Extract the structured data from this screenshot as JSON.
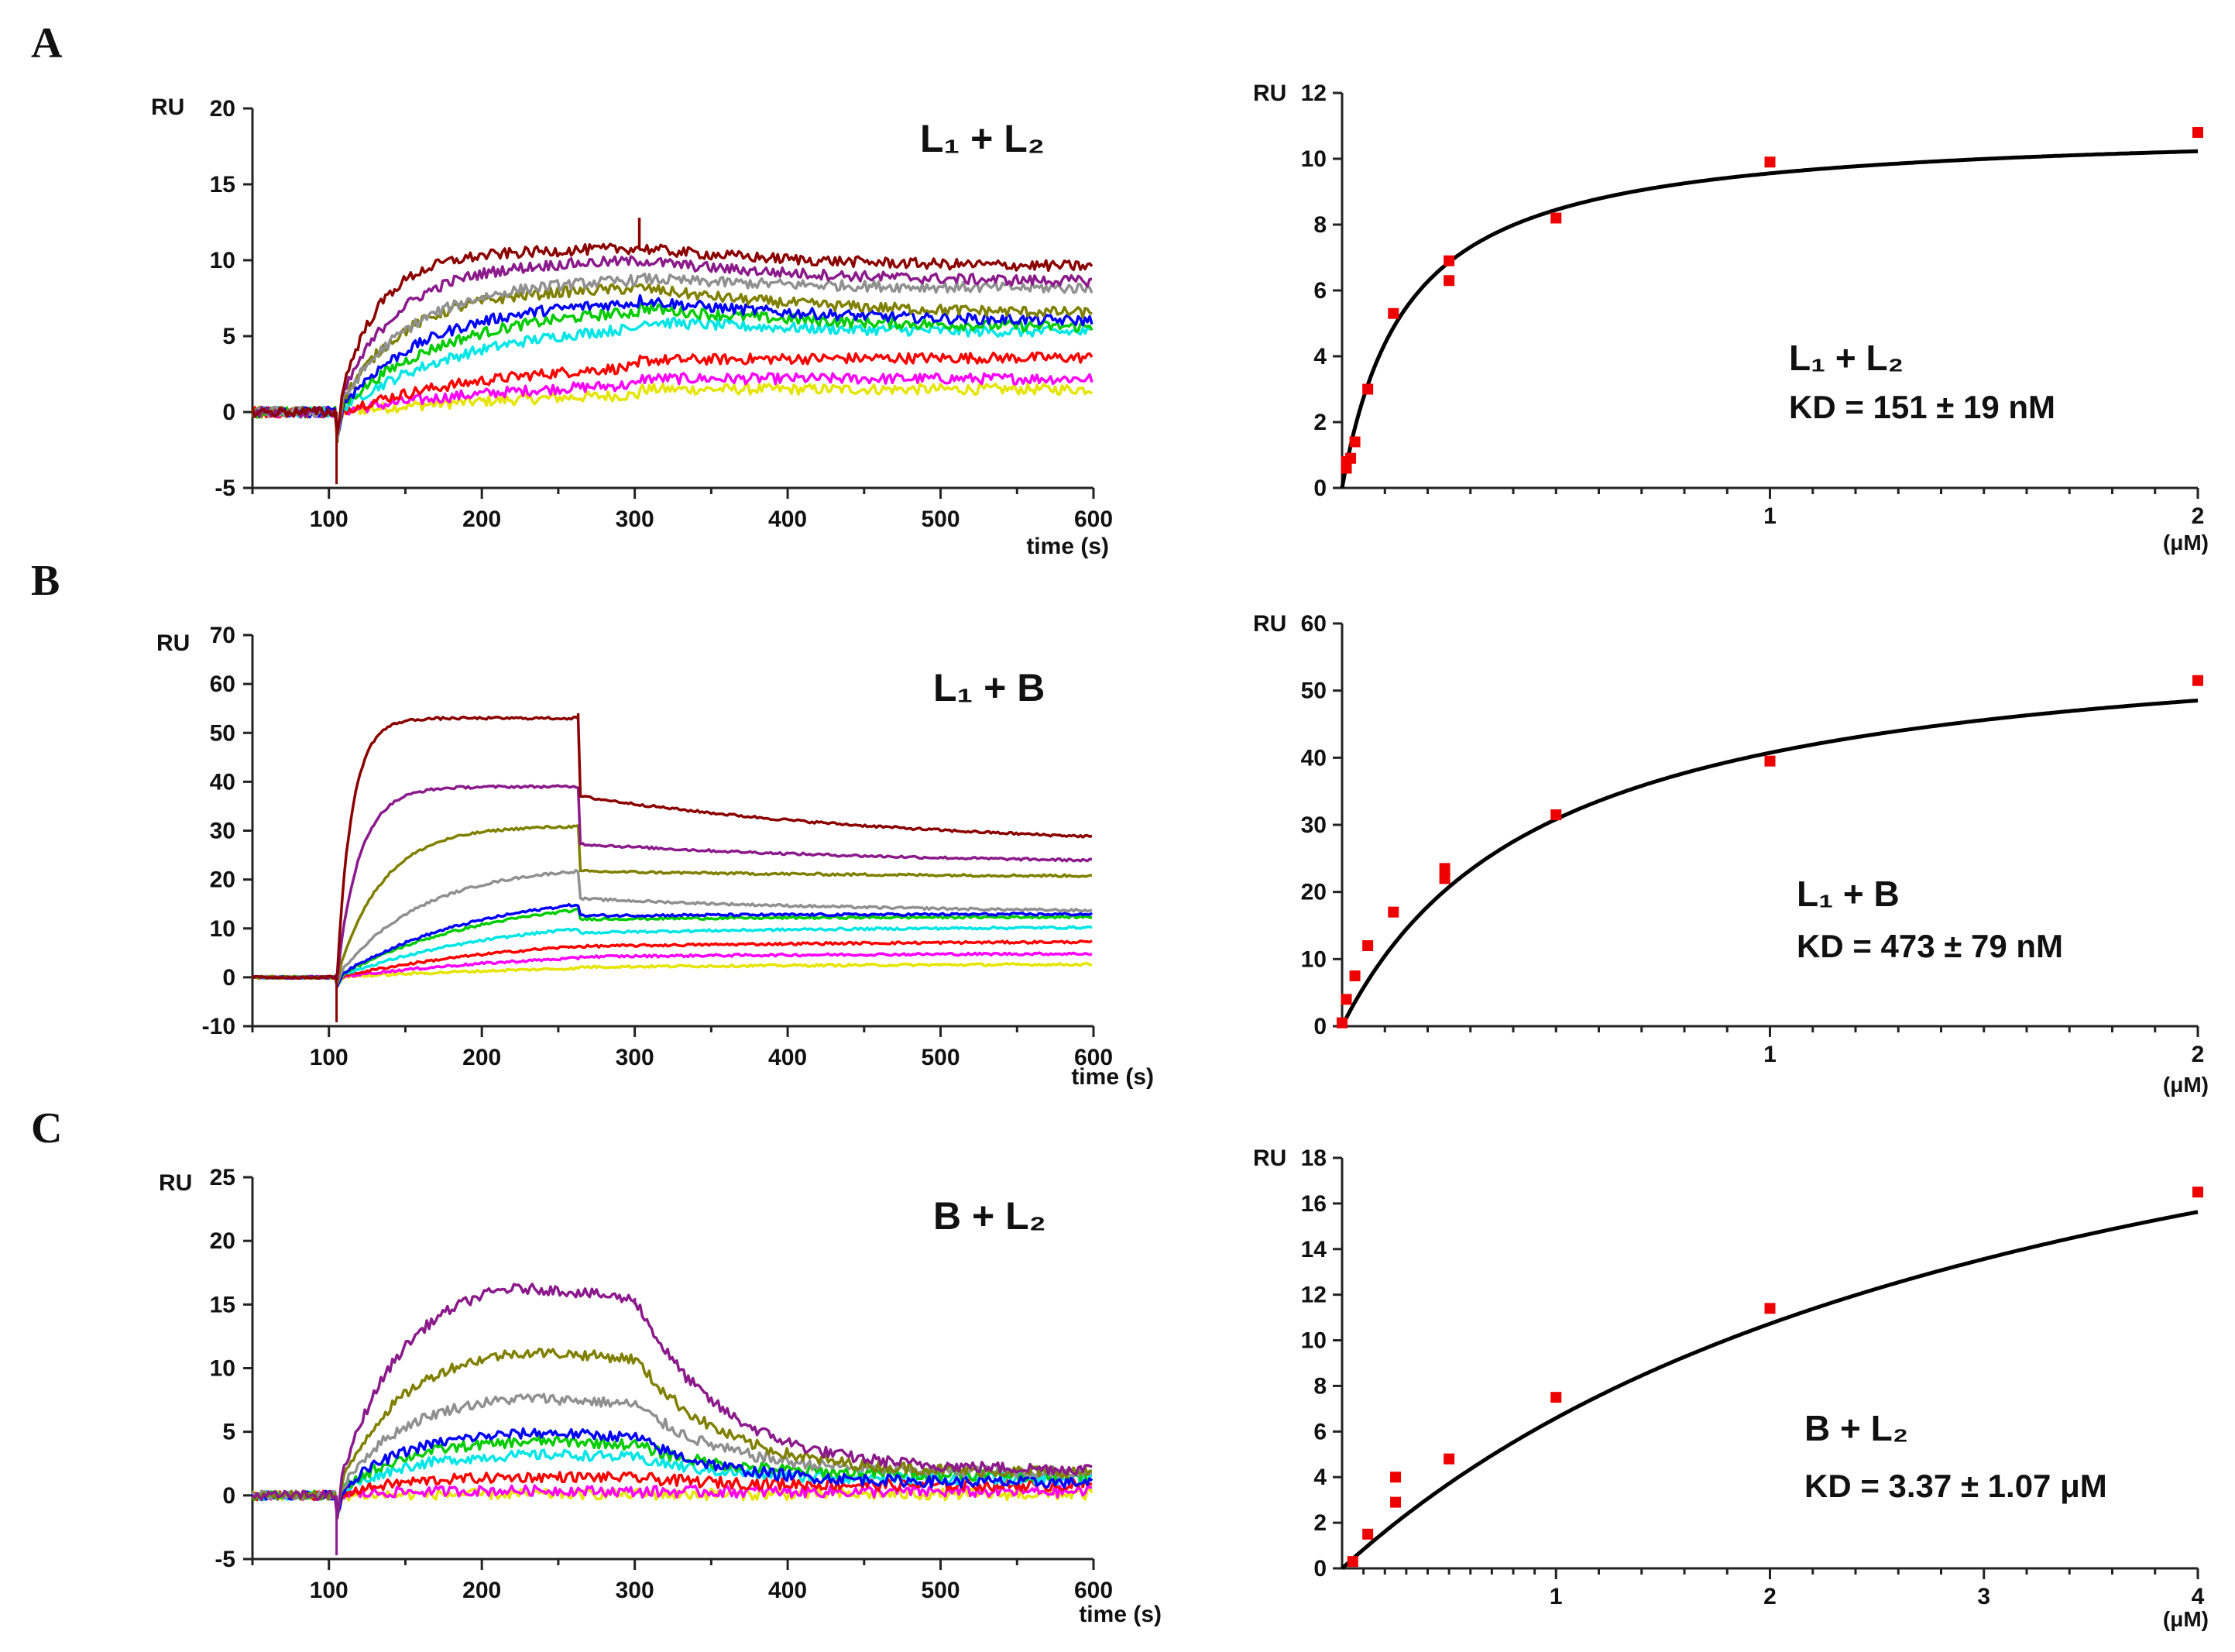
{
  "panels": [
    {
      "letter": "A",
      "sensorgram": {
        "type": "line",
        "title": "L₁ + L₂",
        "ylabel": "RU",
        "xlabel": "time (s)",
        "xlim": [
          50,
          600
        ],
        "ylim": [
          -5,
          20
        ],
        "xticks": [
          100,
          200,
          300,
          400,
          500,
          600
        ],
        "yticks": [
          -5,
          0,
          5,
          10,
          15,
          20
        ],
        "inject_start": 105,
        "inject_end": 303,
        "spike": 12.8,
        "series": [
          {
            "name": "c1",
            "color": "#8B0000",
            "plateau": 10.8,
            "end": 9.5,
            "rise": 25
          },
          {
            "name": "c2",
            "color": "#8B1A8B",
            "plateau": 10.0,
            "end": 8.5,
            "rise": 35
          },
          {
            "name": "c3",
            "color": "#909090",
            "plateau": 8.8,
            "end": 8.1,
            "rise": 45
          },
          {
            "name": "c4",
            "color": "#808000",
            "plateau": 8.2,
            "end": 6.4,
            "rise": 40
          },
          {
            "name": "c5",
            "color": "#0000FF",
            "plateau": 7.4,
            "end": 5.9,
            "rise": 55
          },
          {
            "name": "c6",
            "color": "#00CC00",
            "plateau": 6.9,
            "end": 5.5,
            "rise": 65
          },
          {
            "name": "c7",
            "color": "#00E5E5",
            "plateau": 6.0,
            "end": 5.2,
            "rise": 80
          },
          {
            "name": "c8",
            "color": "#FF0000",
            "plateau": 3.4,
            "end": 3.6,
            "rise": 100
          },
          {
            "name": "c9",
            "color": "#FF00FF",
            "plateau": 2.2,
            "end": 2.2,
            "rise": 120
          },
          {
            "name": "c10",
            "color": "#E5E500",
            "plateau": 1.5,
            "end": 1.5,
            "rise": 150
          }
        ]
      },
      "fit": {
        "type": "scatter",
        "ylabel": "RU",
        "unit": "(μM)",
        "xlim": [
          0,
          2
        ],
        "ylim": [
          0,
          12
        ],
        "xticks": [
          1,
          2
        ],
        "yticks": [
          0,
          2,
          4,
          6,
          8,
          10,
          12
        ],
        "minor_x": [
          0.1,
          0.2,
          0.3,
          0.4,
          0.5,
          0.6,
          0.7,
          0.8,
          0.9,
          1.1,
          1.2,
          1.3,
          1.4,
          1.5,
          1.6,
          1.7,
          1.8,
          1.9
        ],
        "rmax": 11.0,
        "kd_um": 0.151,
        "points": [
          [
            0.01,
            0.6
          ],
          [
            0.01,
            0.8
          ],
          [
            0.02,
            0.9
          ],
          [
            0.03,
            1.4
          ],
          [
            0.06,
            3.0
          ],
          [
            0.12,
            5.3
          ],
          [
            0.25,
            6.3
          ],
          [
            0.25,
            6.9
          ],
          [
            0.5,
            8.2
          ],
          [
            1.0,
            9.9
          ],
          [
            2.0,
            10.8
          ]
        ],
        "annotation": {
          "label": "L₁ + L₂",
          "kd": "KD = 151 ± 19 nM"
        }
      }
    },
    {
      "letter": "B",
      "sensorgram": {
        "type": "line",
        "title": "L₁ + B",
        "ylabel": "RU",
        "xlabel": "time (s)",
        "xlim": [
          50,
          600
        ],
        "ylim": [
          -10,
          70
        ],
        "xticks": [
          100,
          200,
          300,
          400,
          500,
          600
        ],
        "yticks": [
          -10,
          0,
          10,
          20,
          30,
          40,
          50,
          60,
          70
        ],
        "inject_start": 105,
        "inject_end": 263,
        "spike": 54,
        "series": [
          {
            "name": "c1",
            "color": "#8B0000",
            "plateau": 53,
            "end": 26.5,
            "rise": 10
          },
          {
            "name": "c2",
            "color": "#8B1A8B",
            "plateau": 39,
            "end": 23,
            "rise": 15
          },
          {
            "name": "c3",
            "color": "#808000",
            "plateau": 31,
            "end": 20.5,
            "rise": 30
          },
          {
            "name": "c4",
            "color": "#909090",
            "plateau": 23,
            "end": 13,
            "rise": 55
          },
          {
            "name": "c5",
            "color": "#0000FF",
            "plateau": 18,
            "end": 13,
            "rise": 90
          },
          {
            "name": "c6",
            "color": "#00CC00",
            "plateau": 17,
            "end": 12.5,
            "rise": 95
          },
          {
            "name": "c7",
            "color": "#00E5E5",
            "plateau": 13,
            "end": 10.5,
            "rise": 110
          },
          {
            "name": "c8",
            "color": "#FF0000",
            "plateau": 9,
            "end": 7.5,
            "rise": 130
          },
          {
            "name": "c9",
            "color": "#FF00FF",
            "plateau": 6,
            "end": 5,
            "rise": 150
          },
          {
            "name": "c10",
            "color": "#E5E500",
            "plateau": 3,
            "end": 2.8,
            "rise": 170
          }
        ]
      },
      "fit": {
        "type": "scatter",
        "ylabel": "RU",
        "unit": "(μM)",
        "xlim": [
          0,
          2
        ],
        "ylim": [
          0,
          60
        ],
        "xticks": [
          1,
          2
        ],
        "yticks": [
          0,
          10,
          20,
          30,
          40,
          50,
          60
        ],
        "minor_x": [
          0.1,
          0.2,
          0.3,
          0.4,
          0.5,
          0.6,
          0.7,
          0.8,
          0.9,
          1.1,
          1.2,
          1.3,
          1.4,
          1.5,
          1.6,
          1.7,
          1.8,
          1.9
        ],
        "rmax": 60,
        "kd_um": 0.473,
        "points": [
          [
            0.0,
            0.5
          ],
          [
            0.01,
            4
          ],
          [
            0.03,
            7.5
          ],
          [
            0.06,
            12
          ],
          [
            0.12,
            17
          ],
          [
            0.24,
            22
          ],
          [
            0.24,
            23.5
          ],
          [
            0.5,
            31.5
          ],
          [
            1.0,
            39.5
          ],
          [
            2.0,
            51.5
          ]
        ],
        "annotation": {
          "label": "L₁ + B",
          "kd": "KD = 473 ± 79 nM"
        }
      }
    },
    {
      "letter": "C",
      "sensorgram": {
        "type": "line",
        "title": "B + L₂",
        "ylabel": "RU",
        "xlabel": "time (s)",
        "xlim": [
          50,
          600
        ],
        "ylim": [
          -5,
          25
        ],
        "xticks": [
          100,
          200,
          300,
          400,
          500,
          600
        ],
        "yticks": [
          -5,
          0,
          5,
          10,
          15,
          20,
          25
        ],
        "inject_start": 105,
        "inject_end": 300,
        "spike": 15,
        "series": [
          {
            "name": "c1",
            "color": "#8B1A8B",
            "peak": 17.3,
            "peak_t": 215,
            "inj_end_val": 15.5,
            "end": 2.0
          },
          {
            "name": "c2",
            "color": "#808000",
            "peak": 11.8,
            "peak_t": 225,
            "inj_end_val": 10.8,
            "end": 1.8
          },
          {
            "name": "c3",
            "color": "#909090",
            "peak": 8.0,
            "peak_t": 230,
            "inj_end_val": 7.2,
            "end": 1.8
          },
          {
            "name": "c4",
            "color": "#0000FF",
            "peak": 5.1,
            "peak_t": 240,
            "inj_end_val": 4.6,
            "end": 1.0
          },
          {
            "name": "c5",
            "color": "#00CC00",
            "peak": 4.4,
            "peak_t": 245,
            "inj_end_val": 4.0,
            "end": 1.6
          },
          {
            "name": "c6",
            "color": "#00E5E5",
            "peak": 3.3,
            "peak_t": 250,
            "inj_end_val": 3.0,
            "end": 1.3
          },
          {
            "name": "c7",
            "color": "#FF0000",
            "peak": 1.5,
            "peak_t": 250,
            "inj_end_val": 1.4,
            "end": 0.8
          },
          {
            "name": "c8",
            "color": "#FF00FF",
            "peak": 0.4,
            "peak_t": 250,
            "inj_end_val": 0.3,
            "end": 0.3
          },
          {
            "name": "c9",
            "color": "#E5E500",
            "peak": 0.1,
            "peak_t": 250,
            "inj_end_val": 0.1,
            "end": 0.1
          }
        ]
      },
      "fit": {
        "type": "scatter",
        "ylabel": "RU",
        "unit": "(μM)",
        "xlim": [
          0,
          4
        ],
        "ylim": [
          0,
          18
        ],
        "xticks": [
          1,
          2,
          3,
          4
        ],
        "yticks": [
          0,
          2,
          4,
          6,
          8,
          10,
          12,
          14,
          16,
          18
        ],
        "minor_x": [
          0.1,
          0.2,
          0.3,
          0.4,
          0.5,
          0.6,
          0.7,
          0.8,
          0.9,
          1.2,
          1.4,
          1.6,
          1.8,
          2.2,
          2.4,
          2.6,
          2.8,
          3.2,
          3.4,
          3.6,
          3.8
        ],
        "rmax": 28.8,
        "kd_um": 3.37,
        "points": [
          [
            0.05,
            0.3
          ],
          [
            0.12,
            1.5
          ],
          [
            0.25,
            2.9
          ],
          [
            0.25,
            4.0
          ],
          [
            0.5,
            4.8
          ],
          [
            1.0,
            7.5
          ],
          [
            2.0,
            11.4
          ],
          [
            4.0,
            16.5
          ]
        ],
        "annotation": {
          "label": "B + L₂",
          "kd": "KD = 3.37 ± 1.07 μM"
        }
      }
    }
  ]
}
